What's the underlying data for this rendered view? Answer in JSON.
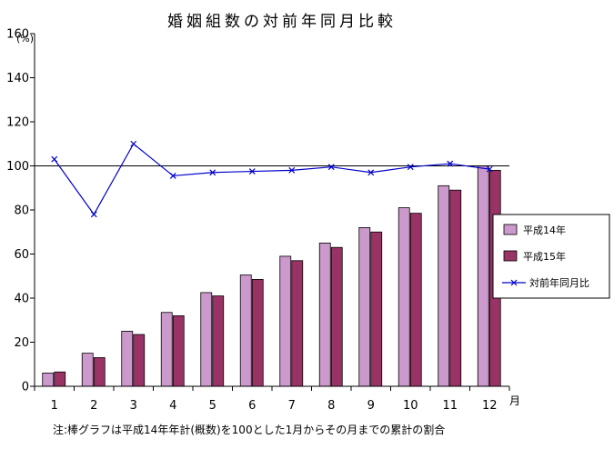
{
  "chart_data": {
    "type": "bar",
    "title": "婚姻組数の対前年同月比較",
    "ylabel": "(%)",
    "xlabel": "月",
    "ylim": [
      0,
      160
    ],
    "yticks": [
      0,
      20,
      40,
      60,
      80,
      100,
      120,
      140,
      160
    ],
    "categories": [
      "1",
      "2",
      "3",
      "4",
      "5",
      "6",
      "7",
      "8",
      "9",
      "10",
      "11",
      "12"
    ],
    "series": [
      {
        "name": "平成14年",
        "kind": "bar",
        "color": "#cc99cc",
        "values": [
          6,
          15,
          25,
          33.5,
          42.5,
          50.5,
          59,
          65,
          72,
          81,
          91,
          100
        ]
      },
      {
        "name": "平成15年",
        "kind": "bar",
        "color": "#993366",
        "values": [
          6.5,
          13,
          23.5,
          32,
          41,
          48.5,
          57,
          63,
          70,
          78.5,
          89,
          98
        ]
      },
      {
        "name": "対前年同月比",
        "kind": "line",
        "color": "#0000cc",
        "values": [
          103,
          78,
          110,
          95.5,
          97,
          97.5,
          98,
          99.5,
          97,
          99.5,
          101,
          98.5
        ]
      }
    ],
    "reference_line": 100,
    "legend_position": "right",
    "grid": false
  },
  "footnote": "注:棒グラフは平成14年年計(概数)を100とした1月からその月までの累計の割合"
}
